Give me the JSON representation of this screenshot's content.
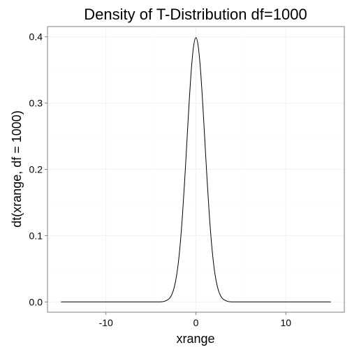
{
  "chart_data": {
    "type": "line",
    "title": "Density of T-Distribution df=1000",
    "xlabel": "xrange",
    "ylabel": "dt(xrange, df = 1000)",
    "xlim": [
      -16.5,
      16.5
    ],
    "ylim": [
      -0.0155,
      0.4155
    ],
    "x_ticks": [
      -10,
      0,
      10
    ],
    "x_tick_labels": [
      "-10",
      "0",
      "10"
    ],
    "y_ticks": [
      0.0,
      0.1,
      0.2,
      0.3,
      0.4
    ],
    "y_tick_labels": [
      "0.0",
      "0.1",
      "0.2",
      "0.3",
      "0.4"
    ],
    "grid": true,
    "series": [
      {
        "x": [
          -15,
          -5,
          -4,
          -3.5,
          -3,
          -2.75,
          -2.5,
          -2.25,
          -2,
          -1.75,
          -1.5,
          -1.25,
          -1,
          -0.75,
          -0.5,
          -0.25,
          0,
          0.25,
          0.5,
          0.75,
          1,
          1.25,
          1.5,
          1.75,
          2,
          2.25,
          2.5,
          2.75,
          3,
          3.5,
          4,
          5,
          15
        ],
        "values": [
          0.0,
          0.0,
          0.0001,
          0.0009,
          0.0045,
          0.0091,
          0.0176,
          0.0318,
          0.054,
          0.0863,
          0.1295,
          0.1826,
          0.2421,
          0.3011,
          0.3519,
          0.3866,
          0.3988,
          0.3866,
          0.3519,
          0.3011,
          0.2421,
          0.1826,
          0.1295,
          0.0863,
          0.054,
          0.0318,
          0.0176,
          0.0091,
          0.0045,
          0.0009,
          0.0001,
          0.0,
          0.0
        ]
      }
    ]
  }
}
